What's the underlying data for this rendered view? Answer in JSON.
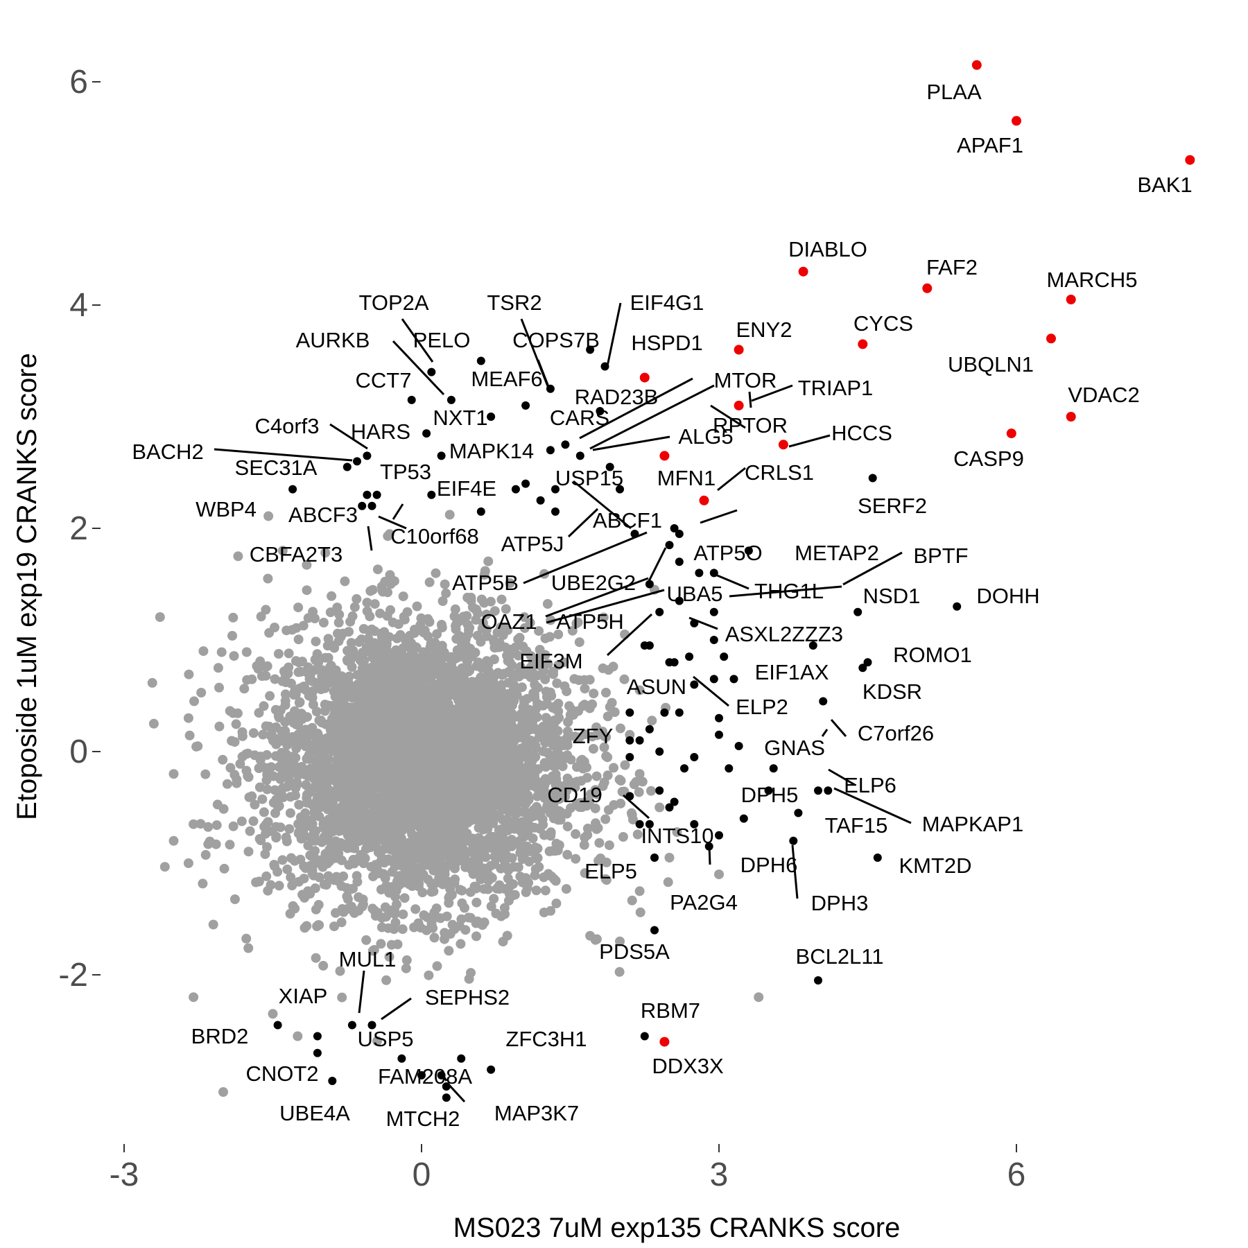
{
  "chart_data": {
    "type": "scatter",
    "xlabel": "MS023 7uM exp135 CRANKS score",
    "ylabel": "Etoposide 1uM exp19 CRANKS score",
    "xlim": [
      -3.2,
      8.2
    ],
    "ylim": [
      -3.55,
      6.6
    ],
    "x_ticks": [
      {
        "value": -3,
        "label": "-3"
      },
      {
        "value": 0,
        "label": "0"
      },
      {
        "value": 3,
        "label": "3"
      },
      {
        "value": 6,
        "label": "6"
      }
    ],
    "y_ticks": [
      {
        "value": -2,
        "label": "-2"
      },
      {
        "value": 0,
        "label": "0"
      },
      {
        "value": 2,
        "label": "2"
      },
      {
        "value": 4,
        "label": "4"
      },
      {
        "value": 6,
        "label": "6"
      }
    ],
    "grid": false,
    "colors": {
      "background": "#ffffff",
      "cloud": "#a0a0a0",
      "highlight": "#ee0000",
      "labelled": "#000000"
    },
    "background_cloud": {
      "description_points": "dense cloud of unlabelled genes",
      "outliers": [
        [
          -2.7,
          0.25
        ],
        [
          -2.3,
          -2.2
        ],
        [
          -2.0,
          -3.05
        ],
        [
          -2.5,
          -0.8
        ],
        [
          -2.3,
          -0.65
        ],
        [
          -2.35,
          -1.0
        ],
        [
          -2.1,
          -1.55
        ],
        [
          -1.5,
          -2.35
        ],
        [
          -1.25,
          -2.55
        ],
        [
          3.4,
          -2.2
        ],
        [
          2.5,
          -0.95
        ],
        [
          2.2,
          -1.25
        ],
        [
          2.0,
          -1.7
        ],
        [
          1.7,
          -1.65
        ],
        [
          3.0,
          -1.1
        ],
        [
          2.2,
          -0.2
        ],
        [
          2.4,
          -0.5
        ],
        [
          1.9,
          0.4
        ],
        [
          2.1,
          0.15
        ],
        [
          -1.85,
          1.75
        ],
        [
          -1.55,
          1.55
        ],
        [
          2.2,
          0.55
        ],
        [
          2.35,
          1.45
        ],
        [
          -2.35,
          0.3
        ],
        [
          -2.5,
          -0.2
        ],
        [
          -1.9,
          1.2
        ],
        [
          -1.4,
          1.8
        ],
        [
          2.05,
          1.05
        ],
        [
          -2.2,
          0.9
        ],
        [
          -2.05,
          0.75
        ]
      ]
    },
    "highlighted_points": [
      {
        "label": "PLAA",
        "x": 5.6,
        "y": 6.15
      },
      {
        "label": "APAF1",
        "x": 6.0,
        "y": 5.65
      },
      {
        "label": "BAK1",
        "x": 7.75,
        "y": 5.3
      },
      {
        "label": "DIABLO",
        "x": 3.85,
        "y": 4.3
      },
      {
        "label": "FAF2",
        "x": 5.1,
        "y": 4.15
      },
      {
        "label": "MARCH5",
        "x": 6.55,
        "y": 4.05
      },
      {
        "label": "UBQLN1",
        "x": 6.35,
        "y": 3.7
      },
      {
        "label": "CYCS",
        "x": 4.45,
        "y": 3.65
      },
      {
        "label": "ENY2",
        "x": 3.2,
        "y": 3.6
      },
      {
        "label": "HSPD1",
        "x": 2.25,
        "y": 3.35
      },
      {
        "label": "TRIAP1",
        "x": 3.2,
        "y": 3.1
      },
      {
        "label": "VDAC2",
        "x": 6.55,
        "y": 3.0
      },
      {
        "label": "CASP9",
        "x": 5.95,
        "y": 2.85
      },
      {
        "label": "HCCS",
        "x": 3.65,
        "y": 2.75
      },
      {
        "label": "MFN1",
        "x": 2.45,
        "y": 2.65
      },
      {
        "label": "CRLS1",
        "x": 2.85,
        "y": 2.25
      },
      {
        "label": "DDX3X",
        "x": 2.45,
        "y": -2.6
      }
    ],
    "labelled_points": [
      {
        "label": "TOP2A",
        "x": 0.1,
        "y": 3.4
      },
      {
        "label": "PELO",
        "x": 0.3,
        "y": 3.15
      },
      {
        "label": "TSR2",
        "x": 1.3,
        "y": 3.25
      },
      {
        "label": "EIF4G1",
        "x": 1.85,
        "y": 3.45
      },
      {
        "label": "COPS7B",
        "x": 1.7,
        "y": 3.6
      },
      {
        "label": "AURKB",
        "x": 0.6,
        "y": 3.5
      },
      {
        "label": "CCT7",
        "x": -0.1,
        "y": 3.15
      },
      {
        "label": "MEAF6",
        "x": 1.05,
        "y": 3.1
      },
      {
        "label": "NXT1",
        "x": 0.7,
        "y": 3.0
      },
      {
        "label": "RAD23B",
        "x": 1.8,
        "y": 3.05
      },
      {
        "label": "MTOR",
        "x": 1.45,
        "y": 2.75
      },
      {
        "label": "CARS",
        "x": 1.3,
        "y": 2.7
      },
      {
        "label": "RPTOR",
        "x": 1.6,
        "y": 2.65
      },
      {
        "label": "ALG5",
        "x": 1.9,
        "y": 2.55
      },
      {
        "label": "C4orf3",
        "x": -0.55,
        "y": 2.65
      },
      {
        "label": "HARS",
        "x": 0.05,
        "y": 2.85
      },
      {
        "label": "BACH2",
        "x": -0.75,
        "y": 2.55
      },
      {
        "label": "SEC31A",
        "x": -0.65,
        "y": 2.6
      },
      {
        "label": "TP53",
        "x": -0.55,
        "y": 2.3
      },
      {
        "label": "MAPK14",
        "x": 0.2,
        "y": 2.65
      },
      {
        "label": "WBP4",
        "x": -1.3,
        "y": 2.35
      },
      {
        "label": "ABCF3",
        "x": -0.6,
        "y": 2.2
      },
      {
        "label": "EIF4E",
        "x": 0.1,
        "y": 2.3
      },
      {
        "label": "USP15",
        "x": 1.35,
        "y": 2.35
      },
      {
        "label": "ABCF1",
        "x": 2.0,
        "y": 2.35
      },
      {
        "label": "C10orf68",
        "x": -0.45,
        "y": 2.3
      },
      {
        "label": "CBFA2T3",
        "x": -0.5,
        "y": 2.2
      },
      {
        "label": "ATP5J",
        "x": 2.15,
        "y": 1.95
      },
      {
        "label": "ATP5B",
        "x": 2.55,
        "y": 2.0
      },
      {
        "label": "UBE2G2",
        "x": 2.5,
        "y": 1.85
      },
      {
        "label": "ATP5O",
        "x": 2.6,
        "y": 1.95
      },
      {
        "label": "THG1L",
        "x": 2.95,
        "y": 1.6
      },
      {
        "label": "SERF2",
        "x": 4.55,
        "y": 2.45
      },
      {
        "label": "METAP2",
        "x": 3.3,
        "y": 1.8
      },
      {
        "label": "BPTF",
        "x": 4.4,
        "y": 1.25
      },
      {
        "label": "DOHH",
        "x": 5.4,
        "y": 1.3
      },
      {
        "label": "OAZ1",
        "x": 2.3,
        "y": 1.5
      },
      {
        "label": "UBA5",
        "x": 2.6,
        "y": 1.35
      },
      {
        "label": "NSD1",
        "x": 2.95,
        "y": 1.25
      },
      {
        "label": "ATP5H",
        "x": 2.4,
        "y": 1.25
      },
      {
        "label": "ASXL2",
        "x": 2.95,
        "y": 1.0
      },
      {
        "label": "ZZZ3",
        "x": 3.95,
        "y": 0.95
      },
      {
        "label": "EIF3M",
        "x": 2.25,
        "y": 0.95
      },
      {
        "label": "ROMO1",
        "x": 4.5,
        "y": 0.8
      },
      {
        "label": "EIF1AX",
        "x": 3.05,
        "y": 0.85
      },
      {
        "label": "KDSR",
        "x": 4.45,
        "y": 0.75
      },
      {
        "label": "ASUN",
        "x": 2.5,
        "y": 0.8
      },
      {
        "label": "ELP2",
        "x": 3.0,
        "y": 0.3
      },
      {
        "label": "C7orf26",
        "x": 4.05,
        "y": 0.45
      },
      {
        "label": "ZFY",
        "x": 2.1,
        "y": 0.1
      },
      {
        "label": "GNAS",
        "x": 3.2,
        "y": 0.05
      },
      {
        "label": "DPH5",
        "x": 3.55,
        "y": -0.15
      },
      {
        "label": "ELP6",
        "x": 4.0,
        "y": -0.35
      },
      {
        "label": "MAPKAP1",
        "x": 4.1,
        "y": -0.35
      },
      {
        "label": "CD19",
        "x": 2.1,
        "y": -0.4
      },
      {
        "label": "TAF15",
        "x": 3.8,
        "y": -0.55
      },
      {
        "label": "INTS10",
        "x": 2.3,
        "y": -0.65
      },
      {
        "label": "ELP5",
        "x": 2.35,
        "y": -0.95
      },
      {
        "label": "DPH6",
        "x": 3.0,
        "y": -0.75
      },
      {
        "label": "PA2G4",
        "x": 2.9,
        "y": -0.85
      },
      {
        "label": "DPH3",
        "x": 3.75,
        "y": -0.8
      },
      {
        "label": "KMT2D",
        "x": 4.6,
        "y": -0.95
      },
      {
        "label": "PDS5A",
        "x": 2.35,
        "y": -1.6
      },
      {
        "label": "BCL2L11",
        "x": 4.0,
        "y": -2.05
      },
      {
        "label": "RBM7",
        "x": 2.25,
        "y": -2.55
      },
      {
        "label": "MUL1",
        "x": -0.7,
        "y": -2.45
      },
      {
        "label": "XIAP",
        "x": -1.45,
        "y": -2.45
      },
      {
        "label": "SEPHS2",
        "x": -0.5,
        "y": -2.45
      },
      {
        "label": "BRD2",
        "x": -1.05,
        "y": -2.7
      },
      {
        "label": "USP5",
        "x": -1.05,
        "y": -2.55
      },
      {
        "label": "ZFC3H1",
        "x": 0.7,
        "y": -2.85
      },
      {
        "label": "CNOT2",
        "x": -0.9,
        "y": -2.95
      },
      {
        "label": "FAM208A",
        "x": -0.2,
        "y": -2.75
      },
      {
        "label": "UBE4A",
        "x": 0.0,
        "y": -2.9
      },
      {
        "label": "MTCH2",
        "x": 0.25,
        "y": -3.1
      },
      {
        "label": "MAP3K7",
        "x": 0.25,
        "y": -3.0
      }
    ],
    "extra_black_points": [
      [
        1.05,
        2.4
      ],
      [
        0.95,
        2.35
      ],
      [
        1.2,
        2.25
      ],
      [
        1.35,
        2.15
      ],
      [
        0.6,
        2.15
      ],
      [
        2.6,
        1.7
      ],
      [
        2.8,
        1.6
      ],
      [
        2.75,
        1.15
      ],
      [
        2.3,
        0.95
      ],
      [
        2.55,
        0.8
      ],
      [
        2.7,
        0.85
      ],
      [
        2.95,
        0.65
      ],
      [
        3.15,
        0.65
      ],
      [
        2.75,
        0.6
      ],
      [
        2.45,
        0.35
      ],
      [
        2.6,
        0.35
      ],
      [
        2.1,
        0.35
      ],
      [
        2.3,
        0.2
      ],
      [
        2.2,
        0.1
      ],
      [
        2.4,
        0.0
      ],
      [
        2.1,
        -0.05
      ],
      [
        2.75,
        -0.05
      ],
      [
        3.1,
        -0.15
      ],
      [
        2.65,
        -0.15
      ],
      [
        2.4,
        -0.35
      ],
      [
        2.55,
        -0.45
      ],
      [
        3.25,
        -0.6
      ],
      [
        2.5,
        -0.5
      ],
      [
        2.75,
        -0.65
      ],
      [
        3.5,
        -0.35
      ],
      [
        3.0,
        0.15
      ],
      [
        2.2,
        -0.65
      ],
      [
        0.4,
        -2.75
      ],
      [
        0.2,
        -2.9
      ]
    ]
  }
}
